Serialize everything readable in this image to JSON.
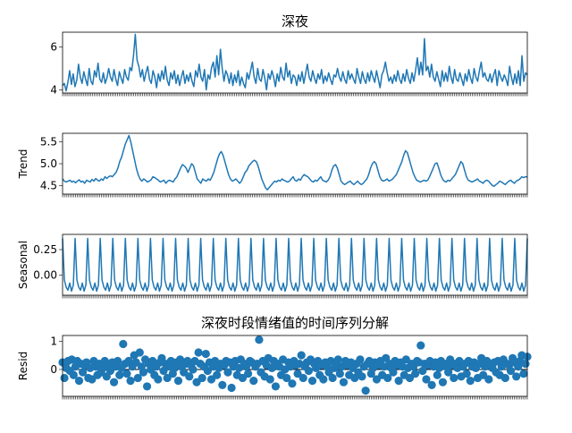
{
  "chart_data": [
    {
      "type": "line",
      "panel": "observed",
      "title": "深夜",
      "ylabel": "",
      "ylim": [
        3.85,
        6.7
      ],
      "yticks": [
        4,
        6
      ],
      "ytick_labels": [
        "4",
        "6"
      ],
      "n_points": 260,
      "series": [
        {
          "values": [
            4.2,
            4.3,
            3.95,
            4.35,
            4.9,
            4.25,
            4.75,
            4.15,
            4.45,
            5.2,
            4.6,
            4.3,
            4.85,
            4.5,
            4.2,
            5.0,
            4.4,
            4.25,
            4.9,
            4.6,
            5.25,
            4.5,
            4.35,
            4.8,
            4.3,
            4.55,
            5.0,
            4.6,
            4.4,
            4.95,
            4.5,
            4.2,
            4.85,
            4.55,
            4.3,
            4.95,
            4.6,
            4.45,
            5.05,
            4.9,
            5.6,
            6.6,
            5.4,
            5.1,
            4.6,
            4.95,
            4.4,
            4.8,
            5.1,
            4.5,
            4.3,
            4.9,
            4.6,
            4.1,
            4.75,
            4.4,
            4.9,
            4.5,
            5.1,
            4.45,
            4.2,
            4.8,
            4.5,
            4.9,
            4.3,
            4.7,
            4.2,
            4.6,
            4.9,
            4.3,
            4.7,
            4.4,
            4.8,
            4.4,
            4.15,
            4.9,
            4.6,
            5.2,
            4.6,
            4.4,
            4.95,
            4.0,
            4.7,
            4.5,
            5.05,
            5.3,
            4.6,
            5.6,
            4.7,
            5.9,
            5.0,
            4.4,
            4.9,
            4.7,
            4.3,
            4.8,
            4.2,
            4.7,
            4.35,
            4.9,
            4.2,
            4.6,
            4.3,
            4.1,
            4.8,
            4.5,
            4.9,
            5.3,
            4.6,
            4.3,
            5.0,
            4.5,
            4.4,
            4.95,
            4.55,
            4.0,
            4.75,
            4.5,
            4.9,
            4.6,
            4.15,
            4.75,
            4.4,
            5.05,
            4.6,
            4.45,
            5.25,
            4.6,
            4.9,
            4.3,
            4.7,
            4.6,
            4.2,
            4.7,
            4.4,
            4.85,
            4.3,
            4.75,
            5.2,
            4.6,
            4.4,
            4.9,
            4.55,
            4.3,
            4.75,
            4.5,
            4.95,
            4.3,
            4.65,
            4.4,
            4.8,
            4.5,
            4.25,
            4.7,
            4.6,
            5.0,
            4.6,
            4.4,
            4.85,
            4.5,
            4.3,
            4.9,
            4.5,
            4.75,
            4.5,
            4.3,
            5.0,
            4.6,
            4.3,
            4.85,
            4.5,
            4.3,
            4.8,
            4.4,
            4.9,
            4.6,
            4.35,
            4.9,
            4.5,
            4.1,
            4.7,
            4.9,
            5.3,
            4.8,
            4.4,
            4.6,
            4.3,
            4.7,
            4.4,
            4.9,
            4.5,
            4.3,
            4.75,
            4.4,
            4.95,
            4.55,
            4.3,
            4.8,
            4.4,
            4.9,
            5.5,
            4.7,
            5.3,
            4.7,
            6.4,
            4.9,
            5.1,
            4.6,
            5.2,
            4.6,
            4.4,
            4.85,
            4.5,
            4.15,
            4.9,
            4.4,
            4.8,
            4.4,
            5.1,
            4.6,
            4.3,
            4.95,
            4.5,
            4.4,
            4.8,
            4.5,
            4.2,
            4.75,
            4.4,
            4.95,
            4.55,
            4.3,
            5.0,
            4.6,
            4.4,
            4.9,
            5.3,
            4.6,
            4.8,
            4.5,
            4.4,
            4.75,
            4.35,
            4.7,
            4.95,
            4.2,
            4.9,
            4.6,
            4.4,
            4.7,
            4.5,
            4.2,
            5.1,
            4.6,
            4.25,
            4.75,
            4.3,
            4.9,
            4.2,
            5.6,
            4.4,
            4.8,
            4.7
          ]
        }
      ]
    },
    {
      "type": "line",
      "panel": "trend",
      "title": "",
      "ylabel": "Trend",
      "ylim": [
        4.3,
        5.7
      ],
      "yticks": [
        4.5,
        5.0,
        5.5
      ],
      "ytick_labels": [
        "4.5",
        "5.0",
        "5.5"
      ],
      "n_points": 260,
      "series": [
        {
          "values": [
            4.65,
            4.6,
            4.58,
            4.6,
            4.62,
            4.58,
            4.6,
            4.56,
            4.6,
            4.63,
            4.58,
            4.6,
            4.55,
            4.62,
            4.6,
            4.58,
            4.64,
            4.6,
            4.66,
            4.62,
            4.6,
            4.65,
            4.62,
            4.7,
            4.66,
            4.7,
            4.72,
            4.7,
            4.75,
            4.8,
            4.9,
            5.05,
            5.15,
            5.3,
            5.45,
            5.55,
            5.65,
            5.5,
            5.3,
            5.1,
            4.9,
            4.75,
            4.65,
            4.6,
            4.65,
            4.62,
            4.58,
            4.6,
            4.63,
            4.7,
            4.68,
            4.65,
            4.62,
            4.58,
            4.6,
            4.62,
            4.55,
            4.6,
            4.62,
            4.6,
            4.58,
            4.65,
            4.7,
            4.8,
            4.9,
            4.98,
            4.95,
            4.9,
            4.8,
            4.9,
            5.0,
            4.95,
            4.8,
            4.65,
            4.6,
            4.55,
            4.65,
            4.62,
            4.6,
            4.65,
            4.62,
            4.7,
            4.8,
            4.95,
            5.1,
            5.22,
            5.28,
            5.2,
            5.05,
            4.9,
            4.75,
            4.65,
            4.6,
            4.62,
            4.65,
            4.6,
            4.55,
            4.6,
            4.7,
            4.8,
            4.85,
            4.95,
            5.0,
            5.05,
            5.08,
            5.05,
            4.95,
            4.8,
            4.65,
            4.55,
            4.45,
            4.4,
            4.45,
            4.5,
            4.55,
            4.6,
            4.58,
            4.62,
            4.6,
            4.65,
            4.62,
            4.6,
            4.58,
            4.6,
            4.65,
            4.7,
            4.62,
            4.6,
            4.65,
            4.62,
            4.7,
            4.75,
            4.72,
            4.7,
            4.65,
            4.6,
            4.58,
            4.62,
            4.6,
            4.65,
            4.7,
            4.62,
            4.6,
            4.58,
            4.62,
            4.7,
            4.85,
            4.95,
            4.98,
            4.9,
            4.75,
            4.6,
            4.55,
            4.52,
            4.55,
            4.58,
            4.6,
            4.55,
            4.52,
            4.56,
            4.6,
            4.55,
            4.52,
            4.55,
            4.6,
            4.65,
            4.75,
            4.9,
            5.0,
            5.05,
            5.0,
            4.85,
            4.7,
            4.62,
            4.6,
            4.62,
            4.65,
            4.6,
            4.62,
            4.65,
            4.7,
            4.75,
            4.85,
            4.95,
            5.05,
            5.2,
            5.3,
            5.25,
            5.1,
            4.95,
            4.8,
            4.7,
            4.62,
            4.6,
            4.58,
            4.6,
            4.62,
            4.6,
            4.62,
            4.7,
            4.8,
            4.9,
            5.0,
            5.02,
            4.9,
            4.75,
            4.65,
            4.6,
            4.58,
            4.62,
            4.6,
            4.65,
            4.7,
            4.75,
            4.85,
            4.95,
            5.05,
            5.0,
            4.85,
            4.7,
            4.62,
            4.6,
            4.58,
            4.6,
            4.62,
            4.65,
            4.6,
            4.58,
            4.55,
            4.6,
            4.62,
            4.6,
            4.55,
            4.5,
            4.48,
            4.52,
            4.55,
            4.6,
            4.58,
            4.55,
            4.52,
            4.56,
            4.6,
            4.62,
            4.58,
            4.55,
            4.6,
            4.62,
            4.65,
            4.7,
            4.68,
            4.7,
            4.7
          ]
        }
      ]
    },
    {
      "type": "line",
      "panel": "seasonal",
      "title": "",
      "ylabel": "Seasonal",
      "ylim": [
        -0.2,
        0.4
      ],
      "yticks": [
        0.0,
        0.25
      ],
      "ytick_labels": [
        "0.00",
        "0.25"
      ],
      "period": 7,
      "pattern": [
        0.36,
        -0.05,
        -0.12,
        -0.15,
        -0.08,
        -0.16,
        -0.1
      ],
      "n_points": 260
    },
    {
      "type": "scatter",
      "panel": "resid",
      "title": "深夜时段情绪值的时间序列分解",
      "ylabel": "Resid",
      "ylim": [
        -0.95,
        1.2
      ],
      "yticks": [
        0,
        1
      ],
      "ytick_labels": [
        "0",
        "1"
      ],
      "n_points": 260,
      "series": [
        {
          "values": [
            0.25,
            -0.3,
            0.05,
            0.3,
            -0.05,
            0.35,
            -0.2,
            0.1,
            0.3,
            -0.4,
            0.2,
            -0.1,
            0.15,
            0.25,
            -0.3,
            0.05,
            -0.35,
            0.3,
            0.1,
            -0.2,
            0.2,
            -0.1,
            0.05,
            0.3,
            -0.25,
            0.15,
            -0.05,
            0.25,
            -0.45,
            0.1,
            0.3,
            -0.2,
            0.05,
            0.9,
            0.2,
            -0.15,
            0.3,
            -0.4,
            0.1,
            0.5,
            0.25,
            -0.3,
            0.6,
            0.1,
            -0.1,
            0.35,
            -0.6,
            0.2,
            0.0,
            0.3,
            -0.2,
            0.1,
            -0.35,
            0.25,
            0.4,
            -0.05,
            0.2,
            -0.3,
            0.1,
            0.3,
            -0.15,
            0.05,
            0.25,
            -0.4,
            0.35,
            0.1,
            -0.1,
            0.2,
            0.3,
            -0.25,
            0.15,
            0.0,
            0.3,
            -0.45,
            0.6,
            0.2,
            -0.3,
            0.1,
            0.55,
            -0.05,
            0.25,
            -0.35,
            0.1,
            0.3,
            -0.2,
            0.05,
            0.2,
            -0.55,
            0.15,
            0.3,
            -0.1,
            0.25,
            -0.65,
            0.1,
            0.3,
            -0.2,
            0.05,
            0.35,
            -0.3,
            0.2,
            0.1,
            -0.15,
            0.3,
            0.25,
            -0.4,
            0.1,
            0.2,
            1.05,
            -0.1,
            0.3,
            -0.25,
            0.15,
            0.4,
            -0.35,
            0.05,
            0.3,
            -0.6,
            0.2,
            0.1,
            -0.2,
            0.35,
            0.0,
            -0.3,
            0.25,
            0.1,
            -0.5,
            0.3,
            0.15,
            -0.15,
            0.2,
            0.5,
            -0.3,
            0.1,
            0.25,
            -0.05,
            0.35,
            -0.4,
            0.2,
            0.05,
            0.3,
            -0.2,
            0.15,
            -0.35,
            0.25,
            0.1,
            -0.1,
            0.3,
            -0.3,
            0.05,
            0.2,
            0.35,
            -0.15,
            0.1,
            -0.45,
            0.3,
            0.15,
            -0.2,
            0.25,
            0.05,
            -0.3,
            0.2,
            -0.1,
            0.35,
            -0.25,
            0.1,
            -0.75,
            0.2,
            0.3,
            -0.15,
            0.05,
            0.25,
            -0.35,
            0.15,
            0.3,
            -0.2,
            0.1,
            0.4,
            -0.3,
            0.2,
            0.05,
            -0.1,
            0.3,
            0.15,
            -0.4,
            0.25,
            0.1,
            -0.2,
            0.35,
            0.05,
            -0.3,
            0.2,
            0.1,
            -0.15,
            0.3,
            0.25,
            0.85,
            -0.05,
            0.2,
            -0.35,
            0.15,
            0.3,
            -0.55,
            0.1,
            0.25,
            -0.2,
            0.05,
            0.3,
            -0.45,
            0.2,
            0.1,
            -0.1,
            0.35,
            0.15,
            -0.3,
            0.2,
            0.05,
            0.3,
            -0.25,
            0.1,
            0.2,
            -0.15,
            0.3,
            -0.4,
            0.1,
            0.25,
            0.05,
            -0.3,
            0.2,
            0.4,
            -0.2,
            0.1,
            0.3,
            -0.35,
            0.15,
            0.05,
            0.25,
            -0.1,
            0.3,
            -0.2,
            0.1,
            0.35,
            -0.3,
            0.2,
            0.15,
            -0.05,
            0.4,
            0.25,
            -0.25,
            0.1,
            0.3,
            0.5,
            -0.15,
            0.2,
            0.45
          ]
        }
      ]
    }
  ]
}
